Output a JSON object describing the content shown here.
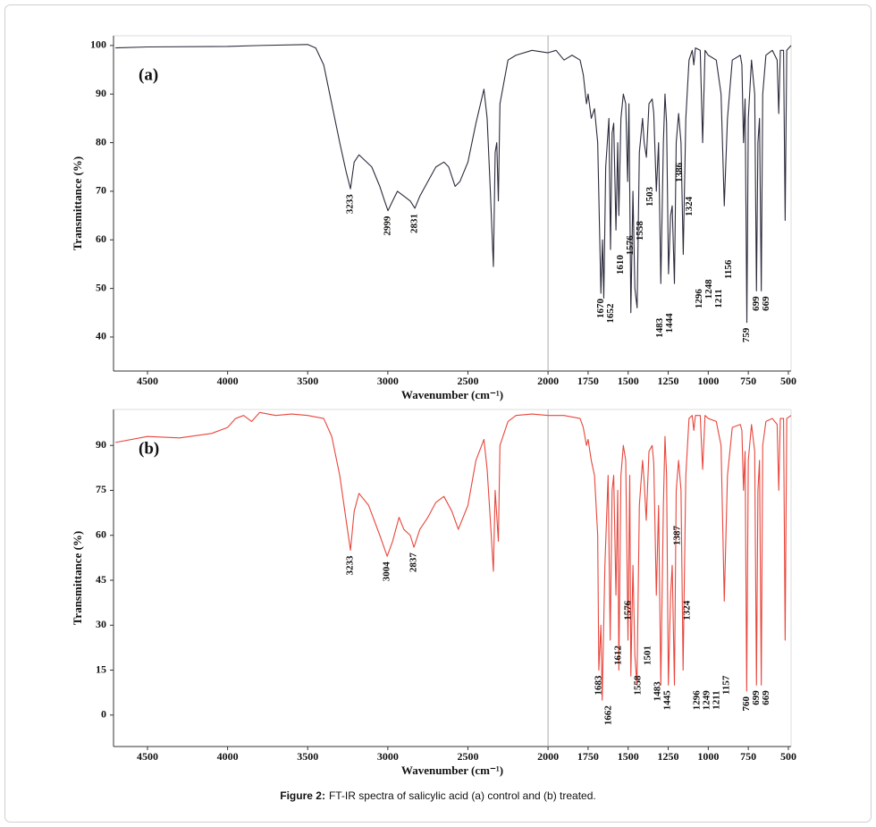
{
  "caption_label": "Figure 2:",
  "caption": "FT-IR spectra of salicylic acid (a) control and (b) treated.",
  "chart_data": [
    {
      "type": "line",
      "title": "(a)",
      "x_label": "Wavenumber (cm⁻¹)",
      "y_label": "Transmittance (%)",
      "xlim": [
        4712,
        483
      ],
      "xticks": [
        4500,
        4000,
        3500,
        3000,
        2500,
        2000,
        1750,
        1500,
        1250,
        1000,
        750,
        500
      ],
      "ylim": [
        33,
        102
      ],
      "yticks": [
        40,
        50,
        60,
        70,
        80,
        90,
        100
      ],
      "divider_x": 2000,
      "color": "#2b2b3c",
      "x": [
        4700,
        4500,
        4000,
        3800,
        3500,
        3450,
        3400,
        3350,
        3300,
        3260,
        3233,
        3210,
        3180,
        3100,
        3050,
        3020,
        2999,
        2970,
        2940,
        2900,
        2860,
        2831,
        2800,
        2750,
        2700,
        2650,
        2620,
        2580,
        2550,
        2500,
        2450,
        2400,
        2380,
        2360,
        2341,
        2330,
        2320,
        2310,
        2300,
        2250,
        2200,
        2100,
        2000,
        1950,
        1900,
        1850,
        1800,
        1780,
        1760,
        1750,
        1730,
        1710,
        1690,
        1670,
        1660,
        1652,
        1640,
        1620,
        1610,
        1600,
        1590,
        1576,
        1565,
        1558,
        1545,
        1530,
        1515,
        1503,
        1495,
        1483,
        1470,
        1458,
        1444,
        1430,
        1410,
        1400,
        1386,
        1370,
        1350,
        1340,
        1324,
        1310,
        1296,
        1280,
        1270,
        1260,
        1248,
        1235,
        1225,
        1211,
        1200,
        1185,
        1170,
        1156,
        1140,
        1120,
        1100,
        1090,
        1080,
        1050,
        1035,
        1020,
        1000,
        950,
        920,
        900,
        880,
        850,
        800,
        790,
        780,
        770,
        759,
        750,
        730,
        710,
        699,
        690,
        680,
        669,
        660,
        640,
        600,
        570,
        560,
        550,
        530,
        520,
        510,
        483
      ],
      "values": [
        99.5,
        99.7,
        99.8,
        100,
        100.2,
        99.5,
        96,
        88,
        80,
        74,
        70.5,
        76,
        77.5,
        75,
        71,
        68,
        66,
        68,
        70,
        69,
        68,
        66.5,
        69,
        72,
        75,
        76,
        75,
        71,
        72,
        76,
        84,
        91,
        85,
        70,
        54.5,
        78,
        80,
        68,
        88,
        97,
        98,
        99,
        98.5,
        99,
        97,
        98,
        97,
        94,
        88,
        90,
        85,
        87,
        80,
        49,
        60,
        48,
        75,
        85,
        58,
        82,
        84,
        62,
        80,
        65,
        85,
        90,
        88,
        72,
        88,
        45,
        70,
        50,
        46,
        78,
        85,
        80,
        77,
        88,
        89,
        86,
        70,
        80,
        51,
        80,
        90,
        84,
        53,
        65,
        67,
        51,
        80,
        86,
        80,
        57,
        85,
        97,
        99,
        96,
        99.5,
        99,
        80,
        99,
        98,
        97,
        90,
        67,
        85,
        97,
        98,
        96,
        80,
        89,
        43,
        85,
        97,
        90,
        49.5,
        80,
        85,
        49.5,
        90,
        98,
        99,
        97,
        86,
        99,
        99,
        64,
        99,
        100
      ],
      "peak_labels": [
        3233,
        2999,
        2831,
        1670,
        1652,
        1610,
        1576,
        1558,
        1503,
        1483,
        1444,
        1386,
        1324,
        1296,
        1248,
        1211,
        1156,
        759,
        699,
        669
      ]
    },
    {
      "type": "line",
      "title": "(b)",
      "x_label": "Wavenumber (cm⁻¹)",
      "y_label": "Transmittance (%)",
      "xlim": [
        4712,
        483
      ],
      "xticks": [
        4500,
        4000,
        3500,
        3000,
        2500,
        2000,
        1750,
        1500,
        1250,
        1000,
        750,
        500
      ],
      "ylim": [
        -10.5,
        102
      ],
      "yticks": [
        0,
        15,
        30,
        45,
        60,
        75,
        90
      ],
      "divider_x": 2000,
      "color": "#e8463c",
      "x": [
        4700,
        4500,
        4300,
        4100,
        4000,
        3950,
        3900,
        3850,
        3800,
        3700,
        3600,
        3500,
        3400,
        3350,
        3300,
        3260,
        3233,
        3210,
        3180,
        3120,
        3050,
        3004,
        2970,
        2930,
        2900,
        2860,
        2837,
        2800,
        2750,
        2700,
        2650,
        2600,
        2560,
        2500,
        2450,
        2400,
        2380,
        2360,
        2341,
        2330,
        2310,
        2300,
        2250,
        2200,
        2100,
        2000,
        1900,
        1800,
        1780,
        1760,
        1750,
        1730,
        1710,
        1690,
        1683,
        1670,
        1662,
        1645,
        1625,
        1612,
        1600,
        1590,
        1576,
        1565,
        1558,
        1545,
        1530,
        1515,
        1501,
        1490,
        1483,
        1470,
        1458,
        1445,
        1430,
        1410,
        1400,
        1387,
        1370,
        1350,
        1340,
        1324,
        1310,
        1296,
        1280,
        1270,
        1260,
        1249,
        1235,
        1225,
        1211,
        1200,
        1185,
        1170,
        1157,
        1140,
        1120,
        1100,
        1090,
        1080,
        1050,
        1035,
        1020,
        1000,
        950,
        920,
        900,
        880,
        850,
        800,
        790,
        780,
        770,
        760,
        750,
        730,
        710,
        699,
        690,
        680,
        669,
        660,
        640,
        600,
        570,
        560,
        550,
        530,
        520,
        510,
        483
      ],
      "values": [
        91,
        93,
        92.5,
        94,
        96,
        99,
        100,
        98,
        101,
        100,
        100.5,
        100,
        99,
        93,
        80,
        65,
        55,
        68,
        74,
        70,
        60,
        53,
        58,
        66,
        62,
        60,
        56,
        62,
        66,
        71,
        73,
        68,
        62,
        70,
        85,
        92,
        82,
        65,
        48,
        75,
        58,
        90,
        98,
        100,
        100.5,
        100,
        100,
        99,
        96,
        90,
        92,
        85,
        80,
        60,
        15,
        30,
        5,
        50,
        80,
        25,
        75,
        80,
        40,
        75,
        15,
        80,
        90,
        85,
        25,
        80,
        13,
        50,
        20,
        10,
        70,
        85,
        78,
        65,
        88,
        90,
        84,
        40,
        70,
        10,
        70,
        93,
        80,
        10,
        40,
        50,
        10,
        75,
        85,
        75,
        15,
        80,
        99,
        100,
        95,
        100,
        100,
        82,
        100,
        99,
        98,
        90,
        38,
        80,
        96,
        97,
        95,
        75,
        88,
        8,
        85,
        97,
        88,
        10,
        75,
        85,
        10,
        90,
        98,
        99,
        97,
        75,
        99,
        99,
        25,
        99,
        100
      ],
      "peak_labels": [
        3233,
        3004,
        2837,
        1683,
        1662,
        1612,
        1576,
        1558,
        1501,
        1483,
        1445,
        1387,
        1324,
        1296,
        1249,
        1211,
        1157,
        760,
        699,
        669
      ]
    }
  ]
}
